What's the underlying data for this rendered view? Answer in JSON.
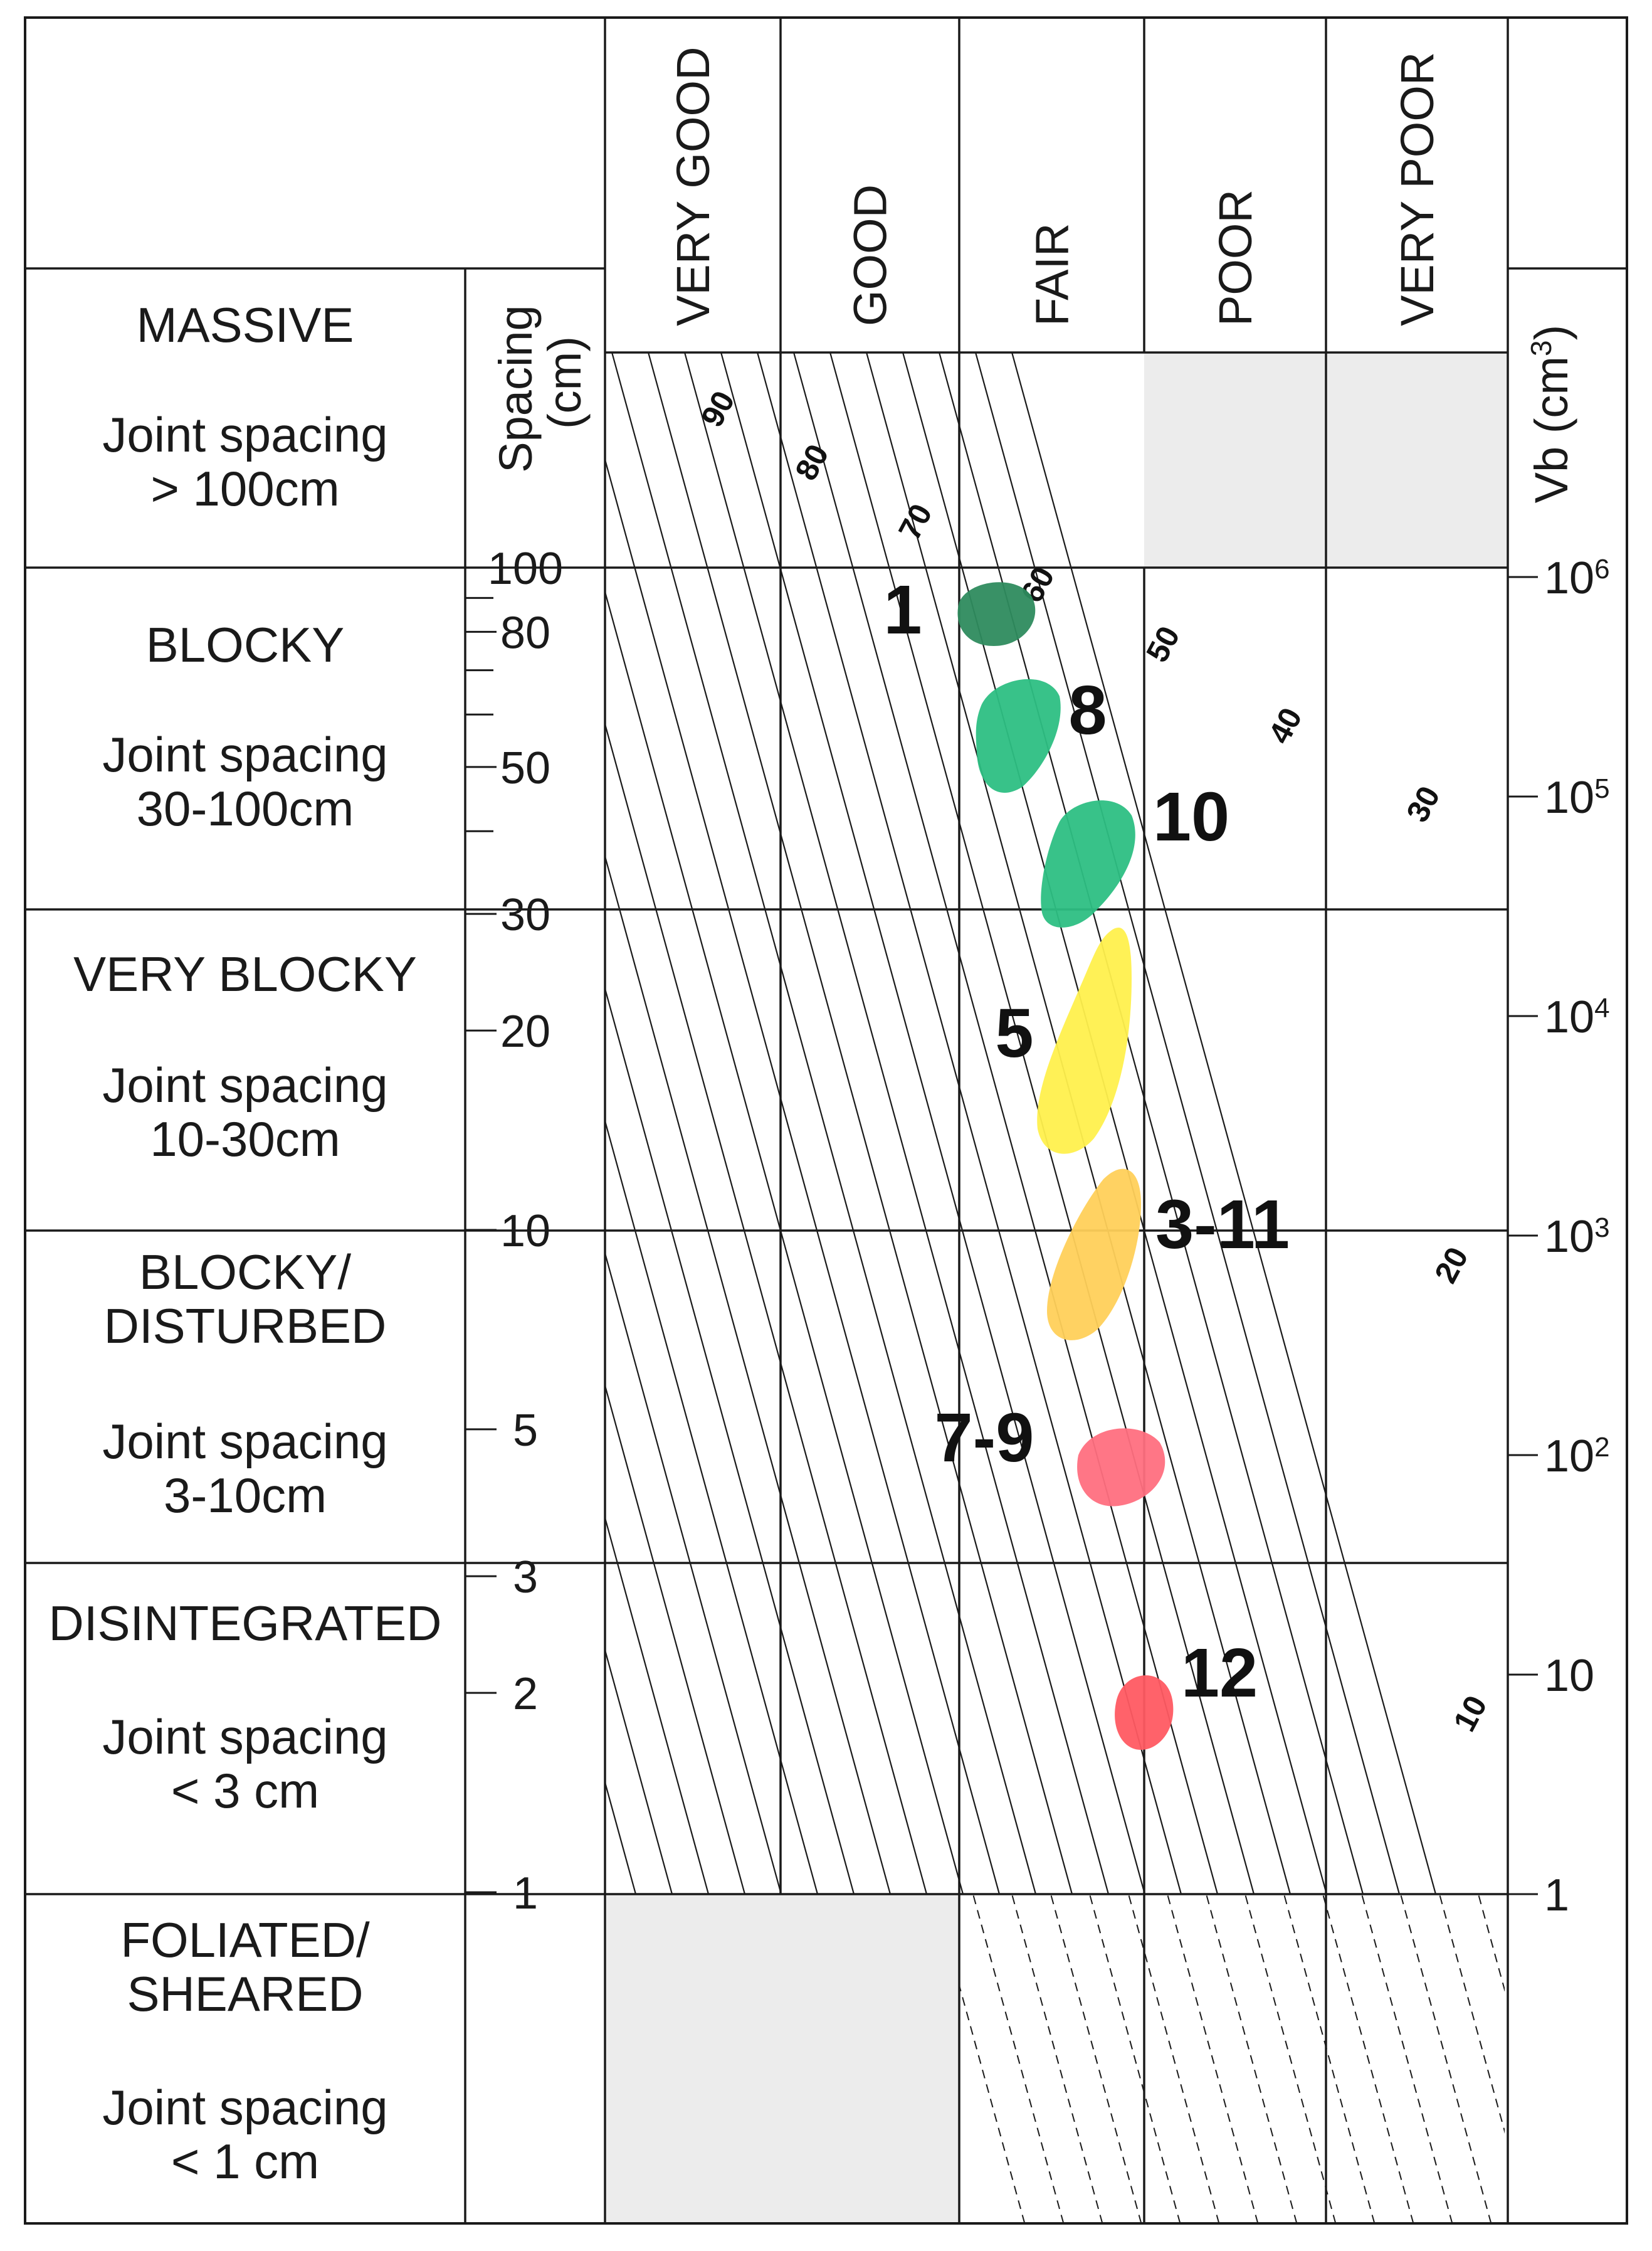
{
  "surface_conditions": [
    "VERY GOOD",
    "GOOD",
    "FAIR",
    "POOR",
    "VERY POOR"
  ],
  "left_axis": {
    "label": "Spacing",
    "unit": "(cm)",
    "ticks": [
      "100",
      "80",
      "50",
      "30",
      "20",
      "10",
      "5",
      "3",
      "2",
      "1"
    ]
  },
  "right_axis": {
    "label": "Vb (cm",
    "sup": "3",
    "close": ")",
    "ticks": [
      {
        "base": "10",
        "exp": "6"
      },
      {
        "base": "10",
        "exp": "5"
      },
      {
        "base": "10",
        "exp": "4"
      },
      {
        "base": "10",
        "exp": "3"
      },
      {
        "base": "10",
        "exp": "2"
      },
      {
        "base": "10",
        "exp": ""
      },
      {
        "base": "1",
        "exp": ""
      }
    ]
  },
  "structure_classes": [
    {
      "name": [
        "MASSIVE"
      ],
      "spacing": [
        "Joint spacing",
        "> 100cm"
      ]
    },
    {
      "name": [
        "BLOCKY"
      ],
      "spacing": [
        "Joint spacing",
        "30-100cm"
      ]
    },
    {
      "name": [
        "VERY BLOCKY"
      ],
      "spacing": [
        "Joint spacing",
        "10-30cm"
      ]
    },
    {
      "name": [
        "BLOCKY/",
        "DISTURBED"
      ],
      "spacing": [
        "Joint spacing",
        "3-10cm"
      ]
    },
    {
      "name": [
        "DISINTEGRATED"
      ],
      "spacing": [
        "Joint spacing",
        "< 3 cm"
      ]
    },
    {
      "name": [
        "FOLIATED/",
        "SHEARED"
      ],
      "spacing": [
        "Joint spacing",
        "< 1 cm"
      ]
    }
  ],
  "gsi_contours": [
    "90",
    "80",
    "70",
    "60",
    "50",
    "40",
    "30",
    "20",
    "10"
  ],
  "sample_points": [
    {
      "label": "1",
      "color": "#2e8b5e"
    },
    {
      "label": "8",
      "color": "#2dbf83"
    },
    {
      "label": "10",
      "color": "#2dbf83"
    },
    {
      "label": "5",
      "color": "#fff04d"
    },
    {
      "label": "3-11",
      "color": "#ffd05a"
    },
    {
      "label": "7-9",
      "color": "#ff6f7f"
    },
    {
      "label": "12",
      "color": "#ff5a62"
    }
  ],
  "colors": {
    "line": "#1a1a1a",
    "shaded": "#ececec"
  }
}
